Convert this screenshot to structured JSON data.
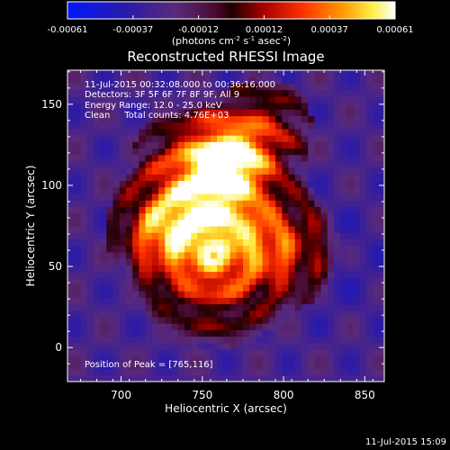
{
  "colorbar": {
    "ticks": [
      "-0.00061",
      "-0.00037",
      "-0.00012",
      "0.00012",
      "0.00037",
      "0.00061"
    ],
    "unit_label": "(photons cm",
    "unit_sup1": "-2",
    "unit_mid": " s",
    "unit_sup2": "-1",
    "unit_end": " asec",
    "unit_sup3": "-2",
    "unit_close": ")"
  },
  "chart_data": {
    "type": "heatmap",
    "title": "Reconstructed RHESSI Image",
    "xlabel": "Heliocentric X (arcsec)",
    "ylabel": "Heliocentric Y (arcsec)",
    "xlim": [
      667,
      862
    ],
    "ylim": [
      -21,
      171
    ],
    "x_ticks": [
      700,
      750,
      800,
      850
    ],
    "y_ticks": [
      0,
      50,
      100,
      150
    ],
    "colorscale": "RHESSI red-temperature",
    "color_range": [
      -0.00061,
      0.00061
    ],
    "annotations": [
      "11-Jul-2015 00:32:08.000 to 00:36:16.000",
      "Detectors: 3F 5F 6F 7F 8F 9F, All 9",
      "Energy Range: 12.0 - 25.0 keV",
      "Clean     Total counts: 4.76E+03"
    ],
    "peak_label": "Position of Peak = [765,116]",
    "peak": [
      765,
      116
    ]
  },
  "footer_timestamp": "11-Jul-2015 15:09"
}
